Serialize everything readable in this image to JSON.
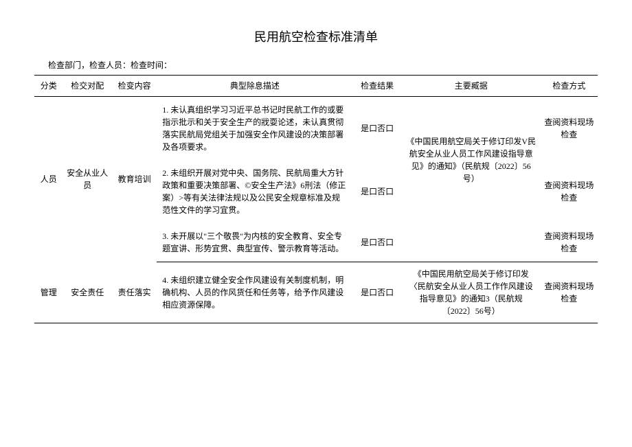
{
  "title": "民用航空检查标准清单",
  "meta": "检查部门，检查人员：检查时间：",
  "headers": {
    "category": "分类",
    "match": "检交对配",
    "content": "检变内容",
    "description": "典型除息描述",
    "result": "检查结果",
    "basis": "主要臧据",
    "method": "检查方式"
  },
  "rows": {
    "r1": {
      "category": "人员",
      "match": "安全从业人员",
      "content": "教育培训",
      "desc": "1. 未认真组织学习习近平总书记时民航工作的或要指示批示和关于安全生产的戕耍论述，未认真贯彻落实民航局党组关于加强安全作风建设的决策部署及各项要求。",
      "result": "是口否口",
      "basis": "",
      "method": "查阅资料现场检查"
    },
    "r2": {
      "desc": "2. 未组织开展对党中央、国务院、民航局重大方针政策和重要决策部署、©安全生产法》6刑法（修正案）>等有关法律法规以及公民安全规章标准及规范性文件的学习宜贯。",
      "result": "是口否口",
      "basis": "《中国民用航空局关于修订印发V民航安全从业人员工作风建设指导意见》的通知》（民航规〔2022〕56号）",
      "method": "查阅资料现场检查"
    },
    "r3": {
      "desc": "3. 未开展以\"三个敬畏\"为内核的安全教育、安全专题宣讲、形势宜贯、典型宣传、警示教育等活动。",
      "result": "是口否口",
      "basis": "",
      "method": "查阅资料现场检查"
    },
    "r4": {
      "category": "管理",
      "match": "安全责任",
      "content": "责任落实",
      "desc": "4. 未组织建立健全安全作风建设有关制度机制，明确机构、人员的作风货任和任务等，给予作风建设相应资源保障。",
      "result": "是口否口",
      "basis": "《中国民用航空局关于修订印发〈民航安全从业人员工作作风建设指导意见》的通知3（民航规〔2022〕56号）",
      "method": "查阅资料现场检查"
    }
  }
}
